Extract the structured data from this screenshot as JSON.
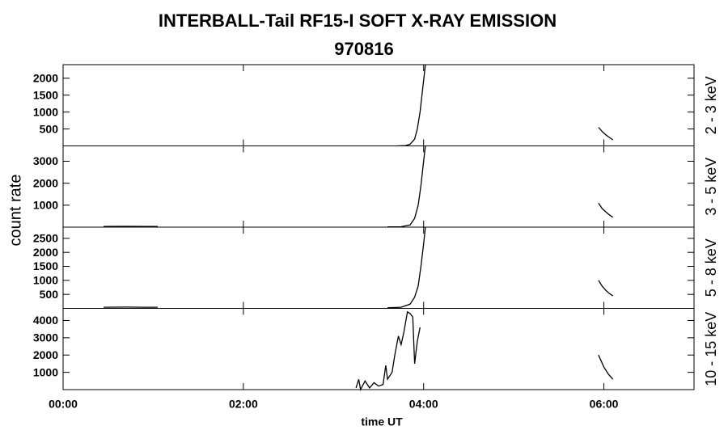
{
  "chart_data": [
    {
      "type": "line",
      "title": "INTERBALL-Tail RF15-I SOFT X-RAY EMISSION",
      "subtitle": "970816",
      "ylabel": "count rate",
      "xlim": [
        0,
        7
      ],
      "ylim": [
        0,
        2400
      ],
      "yticks": [
        500,
        1000,
        1500,
        2000
      ],
      "x": [
        3.7,
        3.8,
        3.85,
        3.9,
        3.93,
        3.96,
        3.99,
        4.02,
        5.0,
        5.94,
        5.98,
        6.02,
        6.06,
        6.1
      ],
      "series": [
        {
          "name": "2 - 3 keV",
          "color": "#000000",
          "values": [
            0,
            10,
            50,
            200,
            500,
            1000,
            1700,
            2400,
            null,
            550,
            430,
            330,
            250,
            180
          ]
        }
      ]
    },
    {
      "type": "line",
      "xlim": [
        0,
        7
      ],
      "ylim": [
        0,
        3700
      ],
      "yticks": [
        1000,
        2000,
        3000
      ],
      "x": [
        0.45,
        0.7,
        0.9,
        1.05,
        2.0,
        3.6,
        3.75,
        3.85,
        3.9,
        3.94,
        3.97,
        4.0,
        4.02,
        5.0,
        5.94,
        5.98,
        6.02,
        6.06,
        6.1
      ],
      "series": [
        {
          "name": "3 - 5 keV",
          "color": "#000000",
          "values": [
            30,
            35,
            30,
            30,
            null,
            10,
            20,
            100,
            400,
            1000,
            1900,
            3000,
            3700,
            null,
            1100,
            850,
            700,
            560,
            450
          ]
        }
      ]
    },
    {
      "type": "line",
      "xlim": [
        0,
        7
      ],
      "ylim": [
        0,
        2900
      ],
      "yticks": [
        500,
        1000,
        1500,
        2000,
        2500
      ],
      "x": [
        0.45,
        0.7,
        0.9,
        1.05,
        2.0,
        3.6,
        3.75,
        3.85,
        3.9,
        3.94,
        3.97,
        4.0,
        4.02,
        5.0,
        5.94,
        5.98,
        6.02,
        6.06,
        6.1
      ],
      "series": [
        {
          "name": "5 - 8 keV",
          "color": "#000000",
          "values": [
            40,
            45,
            40,
            40,
            null,
            20,
            40,
            150,
            400,
            800,
            1500,
            2300,
            2900,
            null,
            1000,
            800,
            650,
            530,
            450
          ]
        }
      ]
    },
    {
      "type": "line",
      "xlabel": "time UT",
      "xlim": [
        0,
        7
      ],
      "ylim": [
        0,
        4700
      ],
      "yticks": [
        1000,
        2000,
        3000,
        4000
      ],
      "xticks": [
        {
          "value": 0,
          "label": "00:00"
        },
        {
          "value": 2,
          "label": "02:00"
        },
        {
          "value": 4,
          "label": "04:00"
        },
        {
          "value": 6,
          "label": "06:00"
        }
      ],
      "x": [
        3.25,
        3.28,
        3.3,
        3.35,
        3.4,
        3.45,
        3.5,
        3.55,
        3.58,
        3.6,
        3.65,
        3.68,
        3.72,
        3.75,
        3.78,
        3.82,
        3.85,
        3.88,
        3.9,
        3.93,
        3.96,
        5.0,
        5.94,
        6.0,
        6.05,
        6.1
      ],
      "series": [
        {
          "name": "10 - 15 keV",
          "color": "#000000",
          "values": [
            100,
            600,
            0,
            500,
            100,
            400,
            200,
            300,
            1400,
            600,
            1000,
            2000,
            3100,
            2600,
            3300,
            4500,
            4400,
            4200,
            1500,
            2800,
            3600,
            null,
            2000,
            1300,
            900,
            600
          ]
        }
      ]
    }
  ]
}
